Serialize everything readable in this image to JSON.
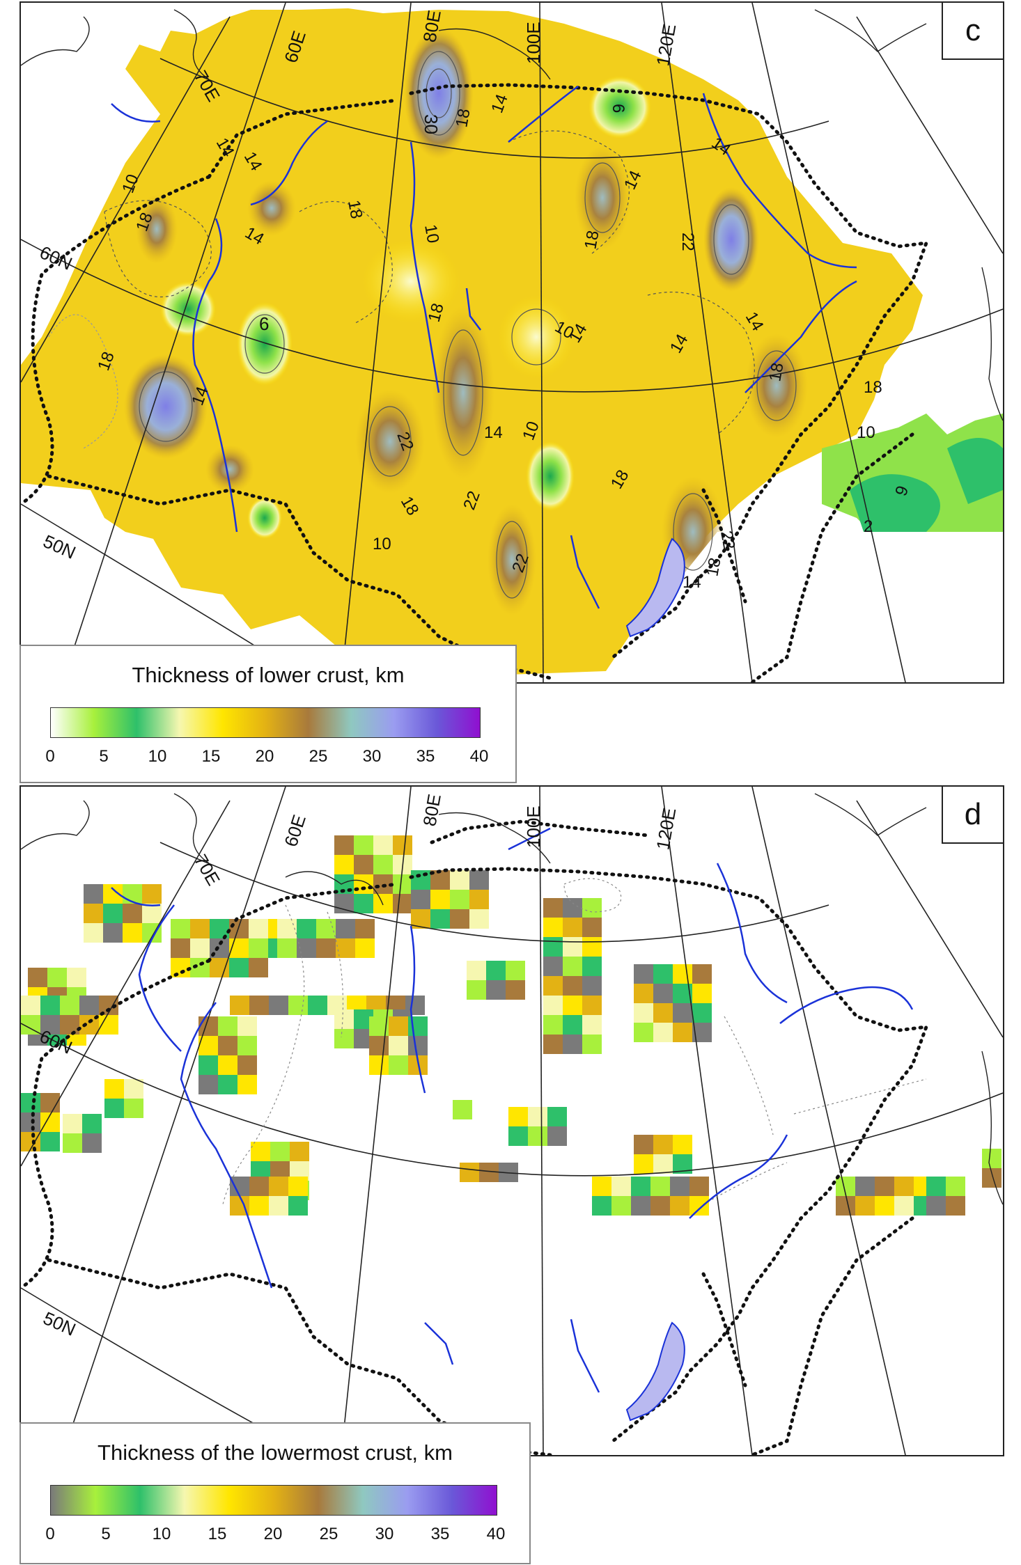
{
  "panel_c": {
    "letter": "c",
    "meridian_labels": [
      "70E",
      "60E",
      "80E",
      "100E",
      "120E"
    ],
    "parallel_labels": [
      "60N",
      "50N"
    ],
    "contour_labels": [
      "14",
      "14",
      "14",
      "14",
      "14",
      "14",
      "14",
      "14",
      "14",
      "14",
      "14",
      "10",
      "10",
      "10",
      "10",
      "10",
      "10",
      "18",
      "18",
      "18",
      "18",
      "18",
      "18",
      "18",
      "18",
      "18",
      "18",
      "22",
      "22",
      "22",
      "22",
      "22",
      "6",
      "6",
      "2",
      "9",
      "14",
      "18",
      "30"
    ],
    "legend": {
      "title": "Thickness of lower crust, km",
      "ticks": [
        "0",
        "5",
        "10",
        "15",
        "20",
        "25",
        "30",
        "35",
        "40"
      ],
      "colormap": [
        "#ffffff",
        "#a8f03c",
        "#2ec06a",
        "#f6f7b0",
        "#ffe600",
        "#e3b214",
        "#a87a3c",
        "#8fc8c0",
        "#9a9cf0",
        "#6a58d8",
        "#9010d0"
      ]
    }
  },
  "panel_d": {
    "letter": "d",
    "meridian_labels": [
      "70E",
      "60E",
      "80E",
      "100E",
      "120E"
    ],
    "parallel_labels": [
      "60N",
      "50N"
    ],
    "legend": {
      "title": "Thickness of the lowermost crust, km",
      "ticks": [
        "0",
        "5",
        "10",
        "15",
        "20",
        "25",
        "30",
        "35",
        "40"
      ],
      "colormap": [
        "#7a7a7a",
        "#a8f03c",
        "#2ec06a",
        "#f6f7b0",
        "#ffe600",
        "#e3b214",
        "#a87a3c",
        "#8fc8c0",
        "#9a9cf0",
        "#6a58d8",
        "#9010d0"
      ]
    }
  }
}
